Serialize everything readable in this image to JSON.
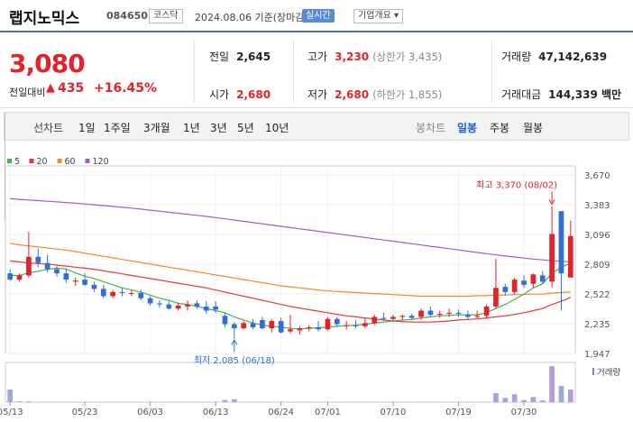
{
  "header": {
    "name": "랩지노믹스",
    "code": "084650",
    "market": "코스닥",
    "date": "2024.08.06 기준(장마감)",
    "realtime": "실시간",
    "info": "기업개요 ▾"
  },
  "quote": {
    "price": "3,080",
    "change_label": "전일대비",
    "change_arrow": "▲",
    "change": "435",
    "change_pct": "+16.45%",
    "prev_label": "전일",
    "prev": "2,645",
    "open_label": "시가",
    "open": "2,680",
    "high_label": "고가",
    "high": "3,230",
    "upper_limit": "(상한가 3,435)",
    "low_label": "저가",
    "low": "2,680",
    "lower_limit": "(하한가 1,855)",
    "volume_label": "거래량",
    "volume": "47,142,639",
    "amount_label": "거래대금",
    "amount": "144,339 백만"
  },
  "toolbar": {
    "line_chart": "선차트",
    "periods": [
      "1일",
      "1주일",
      "3개월",
      "1년",
      "3년",
      "5년",
      "10년"
    ],
    "candle_chart": "봉차트",
    "candle_periods": [
      "일봉",
      "주봉",
      "월봉"
    ],
    "candle_selected": "일봉"
  },
  "colors": {
    "up": "#e3222b",
    "down": "#2f6fd6",
    "ma5": "#4caf50",
    "ma20": "#e53935",
    "ma60": "#f0892e",
    "ma120": "#a05cc9"
  },
  "chart_data": {
    "type": "candlestick",
    "legend": [
      "5",
      "20",
      "60",
      "120"
    ],
    "y_ticks": [
      1947,
      2235,
      2522,
      2809,
      3096,
      3383,
      3670
    ],
    "y_tick_labels": [
      "1,947",
      "2,235",
      "2,522",
      "2,809",
      "3,096",
      "3,383",
      "3,670"
    ],
    "ylim": [
      1947,
      3670
    ],
    "x_ticks": [
      "05/13",
      "05/23",
      "06/03",
      "06/13",
      "06/24",
      "07/01",
      "07/10",
      "07/19",
      "07/30"
    ],
    "x_tick_index": [
      0,
      8,
      15,
      22,
      29,
      34,
      41,
      48,
      55
    ],
    "max_annotation": "최고 3,370 (08/02)",
    "min_annotation": "최저 2,085 (06/18)",
    "volume_label": "거래량",
    "candles": [
      {
        "o": 2720,
        "h": 2760,
        "l": 2650,
        "c": 2660
      },
      {
        "o": 2660,
        "h": 2720,
        "l": 2640,
        "c": 2700
      },
      {
        "o": 2700,
        "h": 3120,
        "l": 2680,
        "c": 2880
      },
      {
        "o": 2880,
        "h": 2960,
        "l": 2780,
        "c": 2820
      },
      {
        "o": 2820,
        "h": 2900,
        "l": 2730,
        "c": 2760
      },
      {
        "o": 2760,
        "h": 2790,
        "l": 2690,
        "c": 2720
      },
      {
        "o": 2720,
        "h": 2760,
        "l": 2630,
        "c": 2660
      },
      {
        "o": 2640,
        "h": 2680,
        "l": 2600,
        "c": 2650
      },
      {
        "o": 2660,
        "h": 2720,
        "l": 2600,
        "c": 2610
      },
      {
        "o": 2610,
        "h": 2640,
        "l": 2540,
        "c": 2570
      },
      {
        "o": 2570,
        "h": 2610,
        "l": 2480,
        "c": 2500
      },
      {
        "o": 2500,
        "h": 2560,
        "l": 2480,
        "c": 2540
      },
      {
        "o": 2540,
        "h": 2580,
        "l": 2500,
        "c": 2530
      },
      {
        "o": 2530,
        "h": 2560,
        "l": 2500,
        "c": 2530
      },
      {
        "o": 2530,
        "h": 2560,
        "l": 2460,
        "c": 2480
      },
      {
        "o": 2480,
        "h": 2500,
        "l": 2410,
        "c": 2430
      },
      {
        "o": 2430,
        "h": 2460,
        "l": 2390,
        "c": 2420
      },
      {
        "o": 2420,
        "h": 2450,
        "l": 2370,
        "c": 2380
      },
      {
        "o": 2380,
        "h": 2440,
        "l": 2360,
        "c": 2410
      },
      {
        "o": 2400,
        "h": 2460,
        "l": 2360,
        "c": 2420
      },
      {
        "o": 2430,
        "h": 2460,
        "l": 2380,
        "c": 2400
      },
      {
        "o": 2400,
        "h": 2450,
        "l": 2330,
        "c": 2360
      },
      {
        "o": 2400,
        "h": 2450,
        "l": 2340,
        "c": 2370
      },
      {
        "o": 2310,
        "h": 2340,
        "l": 2200,
        "c": 2230
      },
      {
        "o": 2230,
        "h": 2250,
        "l": 2085,
        "c": 2190
      },
      {
        "o": 2190,
        "h": 2260,
        "l": 2180,
        "c": 2240
      },
      {
        "o": 2240,
        "h": 2280,
        "l": 2180,
        "c": 2200
      },
      {
        "o": 2270,
        "h": 2300,
        "l": 2180,
        "c": 2190
      },
      {
        "o": 2190,
        "h": 2280,
        "l": 2150,
        "c": 2260
      },
      {
        "o": 2260,
        "h": 2290,
        "l": 2140,
        "c": 2150
      },
      {
        "o": 2160,
        "h": 2320,
        "l": 2140,
        "c": 2180
      },
      {
        "o": 2170,
        "h": 2210,
        "l": 2130,
        "c": 2190
      },
      {
        "o": 2190,
        "h": 2220,
        "l": 2160,
        "c": 2200
      },
      {
        "o": 2200,
        "h": 2260,
        "l": 2160,
        "c": 2180
      },
      {
        "o": 2180,
        "h": 2300,
        "l": 2170,
        "c": 2280
      },
      {
        "o": 2280,
        "h": 2300,
        "l": 2200,
        "c": 2230
      },
      {
        "o": 2210,
        "h": 2260,
        "l": 2180,
        "c": 2220
      },
      {
        "o": 2220,
        "h": 2270,
        "l": 2190,
        "c": 2210
      },
      {
        "o": 2210,
        "h": 2290,
        "l": 2190,
        "c": 2240
      },
      {
        "o": 2240,
        "h": 2320,
        "l": 2220,
        "c": 2300
      },
      {
        "o": 2290,
        "h": 2340,
        "l": 2260,
        "c": 2280
      },
      {
        "o": 2280,
        "h": 2320,
        "l": 2250,
        "c": 2300
      },
      {
        "o": 2300,
        "h": 2320,
        "l": 2270,
        "c": 2310
      },
      {
        "o": 2310,
        "h": 2330,
        "l": 2280,
        "c": 2290
      },
      {
        "o": 2300,
        "h": 2380,
        "l": 2270,
        "c": 2360
      },
      {
        "o": 2360,
        "h": 2400,
        "l": 2300,
        "c": 2320
      },
      {
        "o": 2320,
        "h": 2360,
        "l": 2290,
        "c": 2330
      },
      {
        "o": 2330,
        "h": 2380,
        "l": 2300,
        "c": 2340
      },
      {
        "o": 2340,
        "h": 2370,
        "l": 2300,
        "c": 2330
      },
      {
        "o": 2320,
        "h": 2360,
        "l": 2280,
        "c": 2300
      },
      {
        "o": 2300,
        "h": 2360,
        "l": 2280,
        "c": 2310
      },
      {
        "o": 2310,
        "h": 2420,
        "l": 2280,
        "c": 2400
      },
      {
        "o": 2400,
        "h": 2860,
        "l": 2380,
        "c": 2580
      },
      {
        "o": 2590,
        "h": 2620,
        "l": 2510,
        "c": 2540
      },
      {
        "o": 2540,
        "h": 2680,
        "l": 2520,
        "c": 2660
      },
      {
        "o": 2650,
        "h": 2700,
        "l": 2580,
        "c": 2610
      },
      {
        "o": 2620,
        "h": 2720,
        "l": 2580,
        "c": 2710
      },
      {
        "o": 2700,
        "h": 2740,
        "l": 2620,
        "c": 2640
      },
      {
        "o": 2640,
        "h": 3370,
        "l": 2580,
        "c": 3100
      },
      {
        "o": 3320,
        "h": 3320,
        "l": 2360,
        "c": 2720
      },
      {
        "o": 2680,
        "h": 3230,
        "l": 2680,
        "c": 3080
      }
    ],
    "volumes": [
      0.35,
      0.02,
      0.02,
      0.01,
      0.01,
      0.01,
      0.01,
      0.01,
      0.01,
      0.01,
      0.01,
      0.01,
      0.01,
      0.01,
      0.01,
      0.01,
      0.01,
      0.01,
      0.01,
      0.01,
      0.01,
      0.01,
      0.01,
      0.06,
      0.08,
      0.01,
      0.01,
      0.01,
      0.01,
      0.01,
      0.01,
      0.01,
      0.01,
      0.01,
      0.01,
      0.01,
      0.01,
      0.01,
      0.01,
      0.01,
      0.01,
      0.01,
      0.01,
      0.01,
      0.01,
      0.01,
      0.01,
      0.01,
      0.01,
      0.01,
      0.01,
      0.01,
      0.25,
      0.12,
      0.22,
      0.06,
      0.14,
      0.05,
      1.0,
      0.45,
      0.35
    ],
    "ma5": [
      2700,
      2700,
      2725,
      2740,
      2760,
      2770,
      2762,
      2724,
      2693,
      2670,
      2640,
      2610,
      2580,
      2560,
      2540,
      2510,
      2480,
      2460,
      2430,
      2420,
      2400,
      2380,
      2360,
      2340,
      2300,
      2270,
      2240,
      2220,
      2210,
      2200,
      2190,
      2185,
      2190,
      2195,
      2200,
      2210,
      2215,
      2220,
      2230,
      2240,
      2250,
      2260,
      2270,
      2275,
      2290,
      2300,
      2310,
      2315,
      2320,
      2320,
      2320,
      2340,
      2380,
      2420,
      2470,
      2520,
      2580,
      2620,
      2720,
      2780,
      2820
    ],
    "ma20": [
      2840,
      2830,
      2820,
      2815,
      2810,
      2800,
      2790,
      2780,
      2770,
      2760,
      2745,
      2730,
      2715,
      2700,
      2685,
      2670,
      2655,
      2640,
      2625,
      2610,
      2595,
      2580,
      2560,
      2540,
      2520,
      2500,
      2480,
      2460,
      2440,
      2420,
      2400,
      2385,
      2370,
      2355,
      2340,
      2325,
      2310,
      2300,
      2290,
      2280,
      2270,
      2260,
      2255,
      2250,
      2250,
      2250,
      2255,
      2260,
      2270,
      2275,
      2280,
      2290,
      2300,
      2310,
      2325,
      2340,
      2360,
      2380,
      2420,
      2450,
      2490
    ],
    "ma60": [
      3010,
      2995,
      2985,
      2975,
      2965,
      2955,
      2945,
      2930,
      2915,
      2900,
      2885,
      2870,
      2855,
      2840,
      2825,
      2810,
      2795,
      2780,
      2765,
      2750,
      2735,
      2720,
      2705,
      2690,
      2675,
      2660,
      2645,
      2630,
      2615,
      2600,
      2590,
      2580,
      2570,
      2560,
      2550,
      2545,
      2540,
      2535,
      2530,
      2525,
      2520,
      2515,
      2510,
      2505,
      2500,
      2500,
      2500,
      2500,
      2500,
      2500,
      2505,
      2505,
      2510,
      2510,
      2515,
      2515,
      2520,
      2520,
      2530,
      2535,
      2540
    ],
    "ma120": [
      3440,
      3434,
      3428,
      3422,
      3416,
      3410,
      3404,
      3398,
      3390,
      3382,
      3374,
      3366,
      3358,
      3350,
      3340,
      3330,
      3320,
      3310,
      3300,
      3290,
      3280,
      3270,
      3258,
      3246,
      3234,
      3222,
      3210,
      3198,
      3186,
      3174,
      3162,
      3150,
      3138,
      3126,
      3114,
      3102,
      3090,
      3078,
      3066,
      3054,
      3042,
      3030,
      3018,
      3006,
      2994,
      2982,
      2970,
      2958,
      2946,
      2934,
      2922,
      2910,
      2898,
      2888,
      2878,
      2868,
      2858,
      2850,
      2842,
      2836,
      2830
    ]
  }
}
